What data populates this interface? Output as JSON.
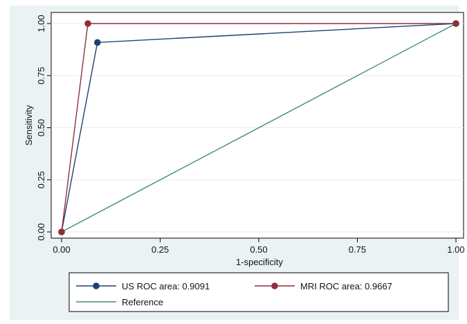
{
  "chart_data": {
    "type": "line",
    "xlabel": "1-specificity",
    "ylabel": "Sensitivity",
    "xlim": [
      0,
      1
    ],
    "ylim": [
      0,
      1
    ],
    "xticks": [
      "0.00",
      "0.25",
      "0.50",
      "0.75",
      "1.00"
    ],
    "yticks": [
      "0.00",
      "0.25",
      "0.50",
      "0.75",
      "1.00"
    ],
    "grid": true,
    "legend_position": "bottom",
    "series": [
      {
        "name": "US ROC area: 0.9091",
        "color": "#1f3f6e",
        "markers": true,
        "x": [
          0,
          0.0909,
          1
        ],
        "y": [
          0,
          0.9091,
          1
        ]
      },
      {
        "name": "MRI ROC area: 0.9667",
        "color": "#8f2f3b",
        "markers": true,
        "x": [
          0,
          0.0667,
          1
        ],
        "y": [
          0,
          1,
          1
        ]
      },
      {
        "name": "Reference",
        "color": "#3f8a80",
        "markers": false,
        "x": [
          0,
          1
        ],
        "y": [
          0,
          1
        ]
      }
    ]
  }
}
